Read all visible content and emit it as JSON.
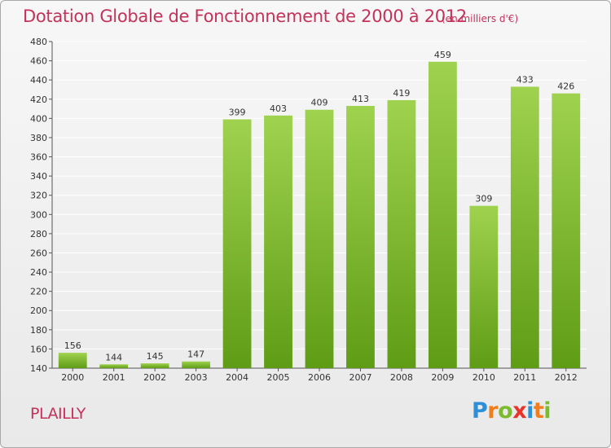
{
  "header": {
    "title": "Dotation Globale de Fonctionnement de 2000 à 2012",
    "unit": "(en milliers d'€)"
  },
  "footer": {
    "commune": "PLAILLY",
    "brand_letters": [
      "P",
      "r",
      "o",
      "x",
      "i",
      "t",
      "i"
    ]
  },
  "colors": {
    "title": "#c4325b",
    "bar_top": "#9fd24f",
    "bar_bottom": "#5f9c16",
    "grid": "#ffffff"
  },
  "chart_data": {
    "type": "bar",
    "title": "Dotation Globale de Fonctionnement de 2000 à 2012",
    "xlabel": "",
    "ylabel": "",
    "ylim": [
      140,
      480
    ],
    "ytick_step": 20,
    "grid": true,
    "categories": [
      "2000",
      "2001",
      "2002",
      "2003",
      "2004",
      "2005",
      "2006",
      "2007",
      "2008",
      "2009",
      "2010",
      "2011",
      "2012"
    ],
    "values": [
      156,
      144,
      145,
      147,
      399,
      403,
      409,
      413,
      419,
      459,
      309,
      433,
      426
    ]
  }
}
